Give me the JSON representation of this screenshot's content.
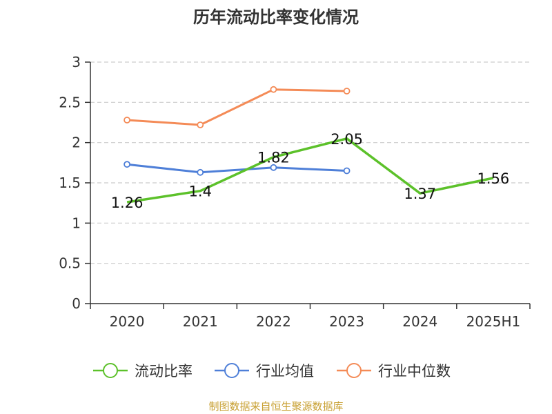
{
  "source_note": "制图数据来自恒生聚源数据库",
  "chart_data": {
    "type": "line",
    "title": "历年流动比率变化情况",
    "xlabel": "",
    "ylabel": "",
    "categories": [
      "2020",
      "2021",
      "2022",
      "2023",
      "2024",
      "2025H1"
    ],
    "ylim": [
      0,
      3
    ],
    "yticks": [
      "0",
      "0.5",
      "1",
      "1.5",
      "2",
      "2.5",
      "3"
    ],
    "grid": true,
    "legend_position": "bottom",
    "series": [
      {
        "name": "流动比率",
        "color": "#5cc12a",
        "values": [
          1.26,
          1.4,
          1.82,
          2.05,
          1.37,
          1.56
        ],
        "labels": [
          "1.26",
          "1.4",
          "1.82",
          "2.05",
          "1.37",
          "1.56"
        ],
        "show_markers": false
      },
      {
        "name": "行业均值",
        "color": "#4e7fd8",
        "values": [
          1.73,
          1.63,
          1.69,
          1.65,
          null,
          null
        ],
        "show_markers": true
      },
      {
        "name": "行业中位数",
        "color": "#f48b57",
        "values": [
          2.28,
          2.22,
          2.66,
          2.64,
          null,
          null
        ],
        "show_markers": true
      }
    ]
  }
}
